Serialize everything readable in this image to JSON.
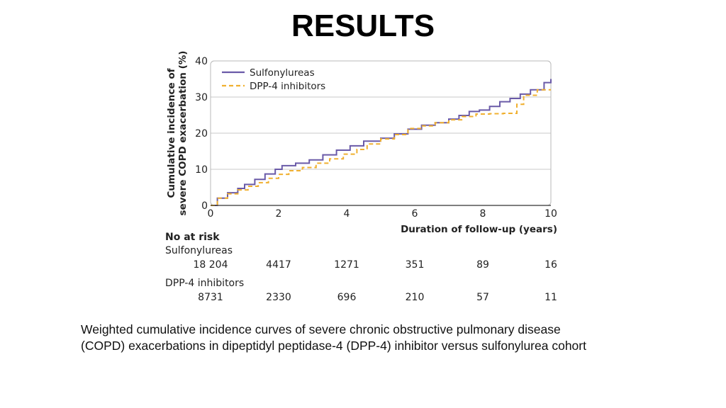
{
  "slide": {
    "title": "RESULTS",
    "caption_lines": [
      "Weighted cumulative incidence curves of severe chronic obstructive pulmonary disease",
      "(COPD) exacerbations in dipeptidyl peptidase-4 (DPP-4) inhibitor versus sulfonylurea cohort"
    ]
  },
  "chart_data": {
    "type": "line",
    "step": true,
    "xlabel": "Duration of follow-up (years)",
    "ylabel_lines": [
      "Cumulative incidence of",
      "severe COPD exacerbation (%)"
    ],
    "xlim": [
      0,
      10
    ],
    "ylim": [
      0,
      40
    ],
    "xticks": [
      0,
      2,
      4,
      6,
      8,
      10
    ],
    "yticks": [
      0,
      10,
      20,
      30,
      40
    ],
    "grid": "horizontal",
    "legend_position": "top-left",
    "series": [
      {
        "name": "Sulfonylureas",
        "color": "#6a5aa8",
        "style": "solid",
        "x": [
          0,
          0.2,
          0.5,
          0.8,
          1.0,
          1.3,
          1.6,
          1.9,
          2.1,
          2.5,
          2.9,
          3.3,
          3.7,
          4.1,
          4.5,
          5.0,
          5.4,
          5.8,
          6.2,
          6.6,
          7.0,
          7.3,
          7.6,
          7.9,
          8.2,
          8.5,
          8.8,
          9.1,
          9.4,
          9.8,
          10.0
        ],
        "y": [
          0,
          2.0,
          3.5,
          4.7,
          5.8,
          7.2,
          8.7,
          10.0,
          11.0,
          11.7,
          12.6,
          14.0,
          15.3,
          16.5,
          17.8,
          18.6,
          19.8,
          21.1,
          22.2,
          22.9,
          23.9,
          24.9,
          26.0,
          26.4,
          27.4,
          28.7,
          29.6,
          30.8,
          32.0,
          34.0,
          35.0
        ]
      },
      {
        "name": "DPP-4 inhibitors",
        "color": "#f0b030",
        "style": "dashed",
        "x": [
          0,
          0.2,
          0.5,
          0.8,
          1.1,
          1.4,
          1.7,
          2.0,
          2.3,
          2.7,
          3.1,
          3.5,
          3.9,
          4.3,
          4.6,
          5.0,
          5.4,
          5.8,
          6.2,
          6.6,
          7.0,
          7.4,
          7.8,
          8.2,
          8.6,
          9.0,
          9.2,
          9.6,
          10.0
        ],
        "y": [
          0,
          2.0,
          3.2,
          4.3,
          5.3,
          6.3,
          7.5,
          8.6,
          9.6,
          10.5,
          11.7,
          12.9,
          14.2,
          15.5,
          17.0,
          18.4,
          19.6,
          21.3,
          22.0,
          22.9,
          23.7,
          24.6,
          25.3,
          25.4,
          25.5,
          28.0,
          30.5,
          32.0,
          32.0
        ]
      }
    ],
    "at_risk": {
      "header": "No at risk",
      "times": [
        0,
        2,
        4,
        6,
        8,
        10
      ],
      "groups": [
        {
          "name": "Sulfonylureas",
          "values": [
            "18 204",
            "4417",
            "1271",
            "351",
            "89",
            "16"
          ]
        },
        {
          "name": "DPP-4 inhibitors",
          "values": [
            "8731",
            "2330",
            "696",
            "210",
            "57",
            "11"
          ]
        }
      ]
    }
  }
}
